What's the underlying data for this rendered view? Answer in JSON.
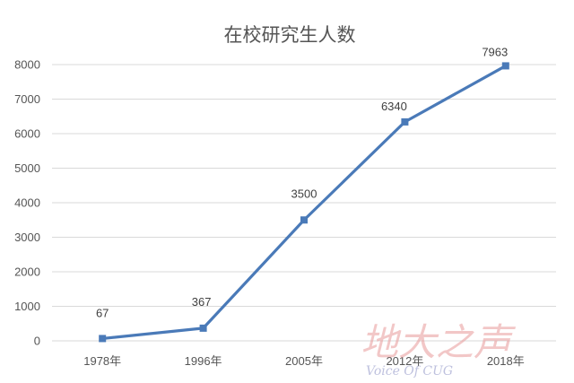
{
  "chart_data": {
    "type": "line",
    "title": "在校研究生人数",
    "categories": [
      "1978年",
      "1996年",
      "2005年",
      "2012年",
      "2018年"
    ],
    "series": [
      {
        "values": [
          67,
          367,
          3500,
          6340,
          7963
        ]
      }
    ],
    "data_labels": [
      "67",
      "367",
      "3500",
      "6340",
      "7963"
    ],
    "ylim": [
      0,
      8000
    ],
    "yticks": [
      0,
      1000,
      2000,
      3000,
      4000,
      5000,
      6000,
      7000,
      8000
    ],
    "grid": true,
    "legend": "none",
    "colors": {
      "series": "#4a7ab8",
      "grid": "#d9d9d9",
      "text": "#555555"
    }
  },
  "watermark": {
    "main": "地大之声",
    "sub": "Voice Of CUG"
  }
}
